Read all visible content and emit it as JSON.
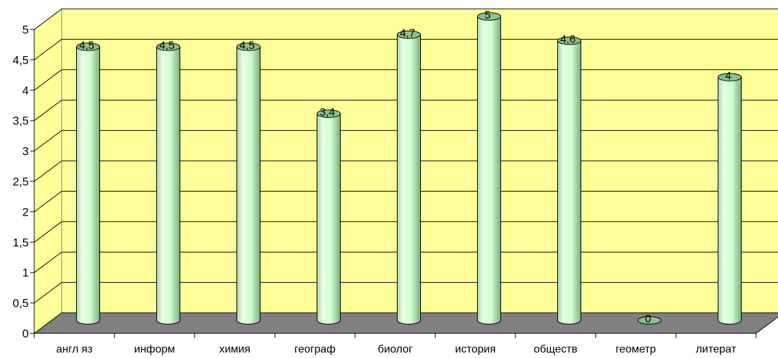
{
  "chart_data": {
    "type": "bar",
    "categories": [
      "англ яз",
      "информ",
      "химия",
      "географ",
      "биолог",
      "история",
      "обществ",
      "геометр",
      "литерат"
    ],
    "values": [
      4.5,
      4.5,
      4.5,
      3.4,
      4.7,
      5,
      4.6,
      0,
      4
    ],
    "data_labels": [
      "4,5",
      "4,5",
      "4,5",
      "3,4",
      "4,7",
      "5",
      "4,6",
      "0",
      "4"
    ],
    "y_ticks": [
      "0",
      "0,5",
      "1",
      "1,5",
      "2",
      "2,5",
      "3",
      "3,5",
      "4",
      "4,5",
      "5"
    ],
    "ylim": [
      0,
      5
    ],
    "grid": true,
    "legend": "none",
    "title": "",
    "xlabel": "",
    "ylabel": "",
    "colors": {
      "wall": "#ffff99",
      "floor": "#808080",
      "bar_light": "#eaffe6",
      "bar_mid": "#ccffcc",
      "bar_dark": "#8fbf8f",
      "bar_top": "#8fbf8f",
      "grid": "#000000"
    }
  }
}
